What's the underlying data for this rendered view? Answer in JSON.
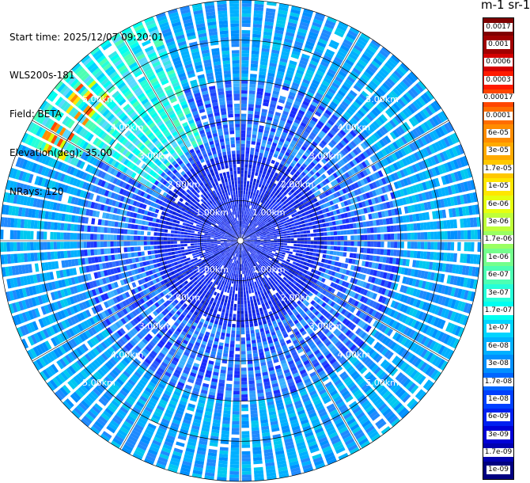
{
  "header": {
    "start_time": "Start time: 2025/12/07 09:20:01",
    "instrument": "WLS200s-181",
    "field": "Field: BETA",
    "elevation": "Elevation(deg): 35.00",
    "nrays": "NRays: 120"
  },
  "colorbar": {
    "title": "m-1 sr-1",
    "labels": [
      "0.0017",
      "0.001",
      "0.0006",
      "0.0003",
      "0.00017",
      "0.0001",
      "6e-05",
      "3e-05",
      "1.7e-05",
      "1e-05",
      "6e-06",
      "3e-06",
      "1.7e-06",
      "1e-06",
      "6e-07",
      "3e-07",
      "1.7e-07",
      "1e-07",
      "6e-08",
      "3e-08",
      "1.7e-08",
      "1e-08",
      "6e-09",
      "3e-09",
      "1.7e-09",
      "1e-09"
    ],
    "colors": [
      "#800000",
      "#a00000",
      "#d40000",
      "#ff1a00",
      "#ff4600",
      "#ff6d00",
      "#ff8c00",
      "#ffaa00",
      "#ffc800",
      "#ffe600",
      "#e6ff10",
      "#bfff3a",
      "#99ff63",
      "#73ff8c",
      "#4cffb3",
      "#26ffd9",
      "#00fff0",
      "#00d4ff",
      "#00b0ff",
      "#0090ff",
      "#0066ff",
      "#0040ff",
      "#0020f0",
      "#0000d6",
      "#0000b0",
      "#000080"
    ]
  },
  "range_rings": {
    "labels": [
      "1.00km",
      "2.00km",
      "3.00km",
      "4.00km",
      "5.00km"
    ]
  },
  "scan": {
    "nrays": 120,
    "ngates": 72,
    "max_range_km": 6.0
  }
}
